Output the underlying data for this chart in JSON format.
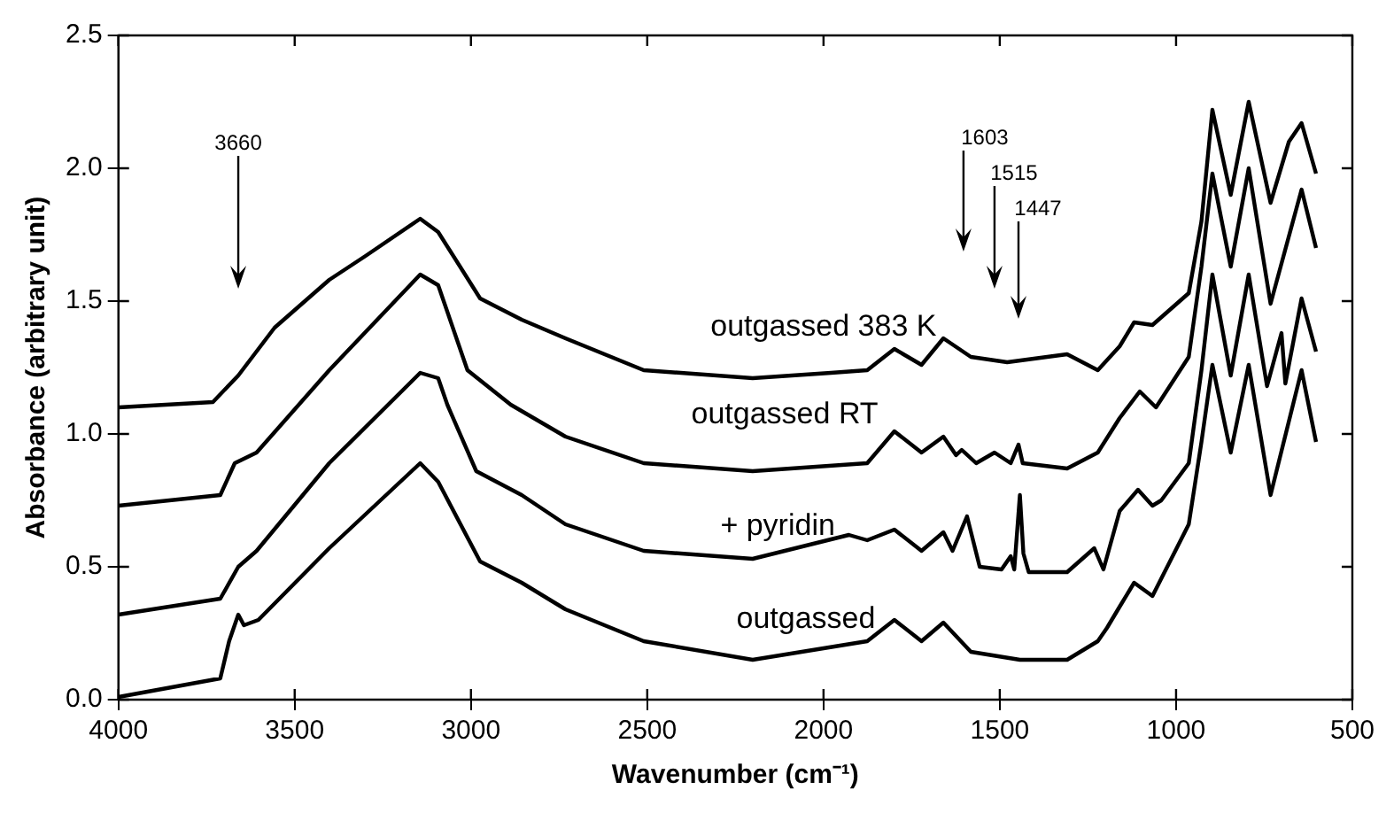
{
  "chart_data": {
    "type": "line",
    "xlabel": "Wavenumber (cm⁻¹)",
    "ylabel": "Absorbance (arbitrary unit)",
    "xlim": [
      4000,
      500
    ],
    "ylim": [
      0,
      2.5
    ],
    "xticks": [
      4000,
      3500,
      3000,
      2500,
      2000,
      1500,
      1000,
      500
    ],
    "yticks": [
      {
        "value": 0,
        "label": "0.0"
      },
      0.5,
      {
        "value": 1,
        "label": "1.0"
      },
      1.5,
      {
        "value": 2,
        "label": "2.0"
      },
      2.5
    ],
    "grid": false,
    "legend": "center",
    "marker": "none",
    "line_style": "solid",
    "annotations": [
      "3660",
      "1603",
      "1515",
      "1447"
    ],
    "series": [
      {
        "name": "outgassed 383 K",
        "color": "#000000",
        "x": [
          4000,
          3732,
          3660,
          3557,
          3402,
          3299,
          3144,
          3093,
          2974,
          2856,
          2732,
          2510,
          2201,
          1979,
          1876,
          1799,
          1722,
          1660,
          1582,
          1479,
          1309,
          1222,
          1160,
          1119,
          1067,
          964,
          928,
          897,
          845,
          794,
          732,
          680,
          644,
          603
        ],
        "values": [
          1.1,
          1.12,
          1.22,
          1.4,
          1.58,
          1.67,
          1.81,
          1.76,
          1.51,
          1.43,
          1.36,
          1.24,
          1.21,
          1.23,
          1.24,
          1.32,
          1.26,
          1.36,
          1.29,
          1.27,
          1.3,
          1.24,
          1.33,
          1.42,
          1.41,
          1.53,
          1.8,
          2.22,
          1.9,
          2.25,
          1.87,
          2.1,
          2.17,
          1.98
        ]
      },
      {
        "name": "outgassed RT",
        "color": "#000000",
        "x": [
          4000,
          3711,
          3670,
          3608,
          3402,
          3144,
          3093,
          3010,
          2887,
          2732,
          2510,
          2201,
          1876,
          1799,
          1722,
          1660,
          1624,
          1608,
          1567,
          1515,
          1469,
          1447,
          1435,
          1309,
          1222,
          1160,
          1103,
          1057,
          964,
          928,
          897,
          845,
          794,
          732,
          644,
          603
        ],
        "values": [
          0.73,
          0.77,
          0.89,
          0.93,
          1.24,
          1.6,
          1.56,
          1.24,
          1.11,
          0.99,
          0.89,
          0.86,
          0.89,
          1.01,
          0.93,
          0.99,
          0.92,
          0.94,
          0.89,
          0.93,
          0.89,
          0.96,
          0.89,
          0.87,
          0.93,
          1.06,
          1.16,
          1.1,
          1.29,
          1.63,
          1.98,
          1.63,
          2.0,
          1.49,
          1.92,
          1.7
        ]
      },
      {
        "name": "+ pyridin",
        "color": "#000000",
        "x": [
          4000,
          3711,
          3660,
          3608,
          3402,
          3144,
          3093,
          3067,
          2985,
          2856,
          2732,
          2510,
          2201,
          1928,
          1876,
          1799,
          1722,
          1660,
          1634,
          1593,
          1557,
          1495,
          1469,
          1459,
          1443,
          1433,
          1418,
          1309,
          1232,
          1206,
          1160,
          1108,
          1067,
          1042,
          964,
          928,
          897,
          845,
          794,
          742,
          701,
          690,
          644,
          603
        ],
        "values": [
          0.32,
          0.38,
          0.5,
          0.56,
          0.89,
          1.23,
          1.21,
          1.11,
          0.86,
          0.77,
          0.66,
          0.56,
          0.53,
          0.62,
          0.6,
          0.64,
          0.56,
          0.63,
          0.56,
          0.69,
          0.5,
          0.49,
          0.54,
          0.49,
          0.77,
          0.55,
          0.48,
          0.48,
          0.57,
          0.49,
          0.71,
          0.79,
          0.73,
          0.75,
          0.89,
          1.24,
          1.6,
          1.22,
          1.6,
          1.18,
          1.38,
          1.19,
          1.51,
          1.31
        ]
      },
      {
        "name": "outgassed",
        "color": "#000000",
        "x": [
          4000,
          3711,
          3686,
          3660,
          3644,
          3603,
          3402,
          3144,
          3093,
          2974,
          2856,
          2732,
          2510,
          2201,
          1876,
          1799,
          1722,
          1660,
          1582,
          1443,
          1309,
          1222,
          1196,
          1160,
          1119,
          1067,
          964,
          928,
          897,
          845,
          794,
          732,
          644,
          603
        ],
        "values": [
          0.01,
          0.08,
          0.22,
          0.32,
          0.28,
          0.3,
          0.57,
          0.89,
          0.82,
          0.52,
          0.44,
          0.34,
          0.22,
          0.15,
          0.22,
          0.3,
          0.22,
          0.29,
          0.18,
          0.15,
          0.15,
          0.22,
          0.27,
          0.35,
          0.44,
          0.39,
          0.66,
          0.97,
          1.26,
          0.93,
          1.26,
          0.77,
          1.24,
          0.97
        ]
      }
    ]
  }
}
